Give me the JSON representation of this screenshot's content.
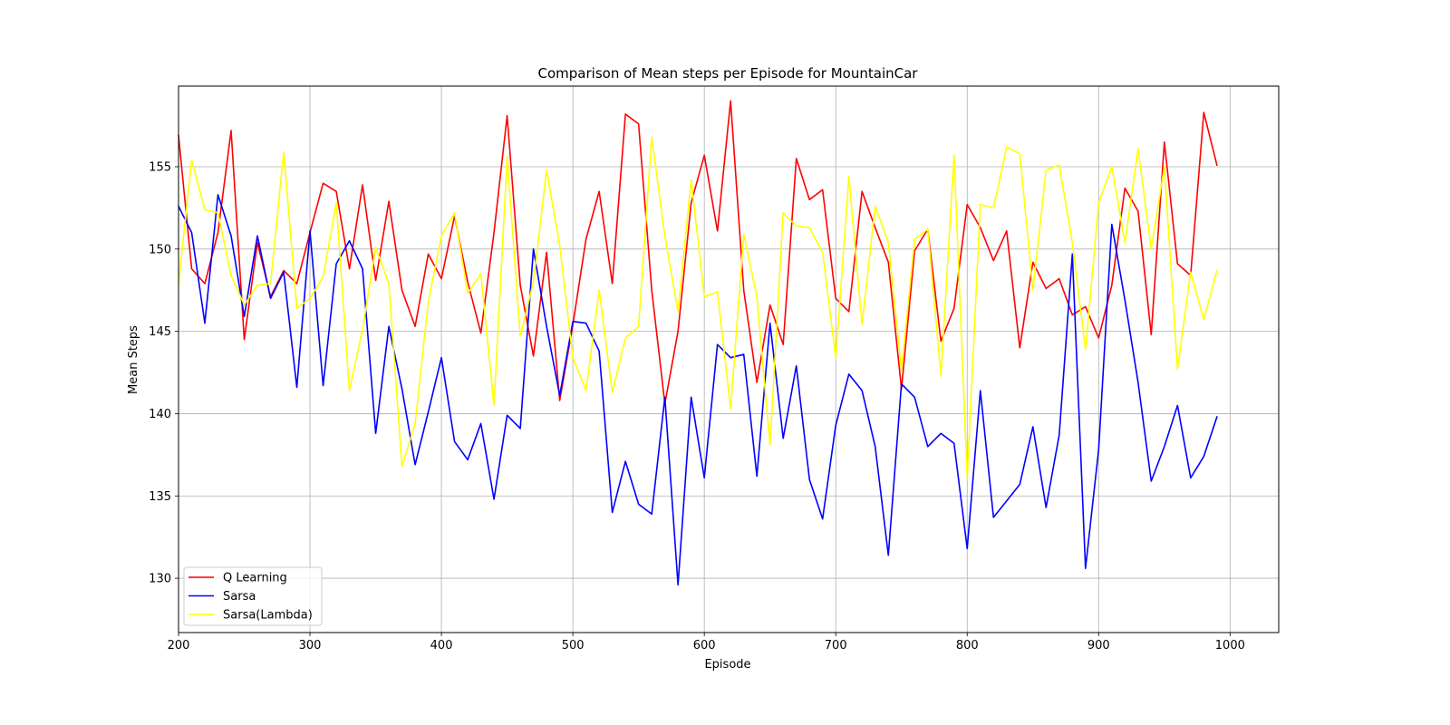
{
  "chart_data": {
    "type": "line",
    "title": "Comparison of Mean steps per Episode for MountainCar",
    "xlabel": "Episode",
    "ylabel": "Mean Steps",
    "xlim": [
      200,
      1037
    ],
    "ylim": [
      126.7,
      159.9
    ],
    "xticks": [
      200,
      300,
      400,
      500,
      600,
      700,
      800,
      900,
      1000
    ],
    "yticks": [
      130,
      135,
      140,
      145,
      150,
      155
    ],
    "grid": true,
    "legend_position": "lower-left",
    "x": [
      200,
      210,
      220,
      230,
      240,
      250,
      260,
      270,
      280,
      290,
      300,
      310,
      320,
      330,
      340,
      350,
      360,
      370,
      380,
      390,
      400,
      410,
      420,
      430,
      440,
      450,
      460,
      470,
      480,
      490,
      500,
      510,
      520,
      530,
      540,
      550,
      560,
      570,
      580,
      590,
      600,
      610,
      620,
      630,
      640,
      650,
      660,
      670,
      680,
      690,
      700,
      710,
      720,
      730,
      740,
      750,
      760,
      770,
      780,
      790,
      800,
      810,
      820,
      830,
      840,
      850,
      860,
      870,
      880,
      890,
      900,
      910,
      920,
      930,
      940,
      950,
      960,
      970,
      980,
      990
    ],
    "series": [
      {
        "name": "Q Learning",
        "color": "#ff0000",
        "values": [
          156.9,
          148.8,
          147.9,
          151.0,
          157.2,
          144.5,
          150.4,
          147.1,
          148.7,
          147.9,
          151.0,
          154.0,
          153.5,
          148.8,
          153.9,
          148.1,
          152.9,
          147.5,
          145.3,
          149.7,
          148.2,
          152.0,
          148.0,
          144.9,
          151.0,
          158.1,
          147.8,
          143.5,
          149.8,
          140.8,
          145.4,
          150.6,
          153.5,
          147.9,
          158.2,
          157.6,
          147.5,
          140.6,
          145.0,
          152.8,
          155.7,
          151.1,
          159.0,
          147.5,
          141.9,
          146.6,
          144.2,
          155.5,
          153.0,
          153.6,
          147.0,
          146.2,
          153.5,
          151.3,
          149.2,
          141.5,
          149.9,
          151.2,
          144.4,
          146.4,
          152.7,
          151.3,
          149.3,
          151.1,
          144.0,
          149.2,
          147.6,
          148.2,
          146.0,
          146.5,
          144.6,
          147.8,
          153.7,
          152.3,
          144.8,
          156.5,
          149.1,
          148.4,
          158.3,
          155.1
        ]
      },
      {
        "name": "Sarsa",
        "color": "#0000ff",
        "values": [
          152.6,
          151.0,
          145.5,
          153.3,
          150.8,
          145.9,
          150.8,
          147.0,
          148.6,
          141.6,
          151.1,
          141.7,
          149.1,
          150.5,
          148.8,
          138.8,
          145.3,
          141.5,
          136.9,
          140.1,
          143.4,
          138.3,
          137.2,
          139.4,
          134.8,
          139.9,
          139.1,
          150.0,
          145.3,
          141.1,
          145.6,
          145.5,
          143.8,
          134.0,
          137.1,
          134.5,
          133.9,
          141.0,
          129.6,
          141.0,
          136.1,
          144.2,
          143.4,
          143.6,
          136.2,
          145.5,
          138.5,
          142.9,
          136.0,
          133.6,
          139.3,
          142.4,
          141.4,
          138.0,
          131.4,
          141.8,
          141.0,
          138.0,
          138.8,
          138.2,
          131.8,
          141.4,
          133.7,
          134.7,
          135.7,
          139.2,
          134.3,
          138.7,
          149.7,
          130.6,
          137.8,
          151.5,
          146.9,
          141.9,
          135.9,
          138.0,
          140.5,
          136.1,
          137.4,
          139.8
        ]
      },
      {
        "name": "Sarsa(Lambda)",
        "color": "#ffff00",
        "values": [
          147.9,
          155.4,
          152.4,
          152.2,
          148.4,
          146.6,
          147.8,
          147.9,
          155.9,
          146.4,
          147.0,
          148.3,
          152.8,
          141.4,
          145.1,
          150.1,
          147.9,
          136.8,
          139.4,
          146.8,
          150.8,
          152.2,
          147.3,
          148.5,
          140.5,
          155.6,
          144.7,
          148.0,
          154.8,
          150.2,
          143.4,
          141.4,
          147.5,
          141.3,
          144.6,
          145.3,
          156.8,
          150.8,
          146.2,
          154.2,
          147.1,
          147.4,
          140.3,
          150.9,
          147.1,
          138.1,
          152.2,
          151.4,
          151.3,
          149.8,
          143.4,
          154.4,
          145.4,
          152.6,
          150.4,
          142.6,
          150.6,
          151.2,
          142.3,
          155.7,
          136.1,
          152.7,
          152.5,
          156.2,
          155.8,
          147.5,
          154.8,
          155.1,
          150.4,
          143.9,
          152.8,
          155.0,
          150.4,
          156.1,
          150.0,
          155.0,
          142.7,
          148.6,
          145.7,
          148.7
        ]
      }
    ]
  }
}
